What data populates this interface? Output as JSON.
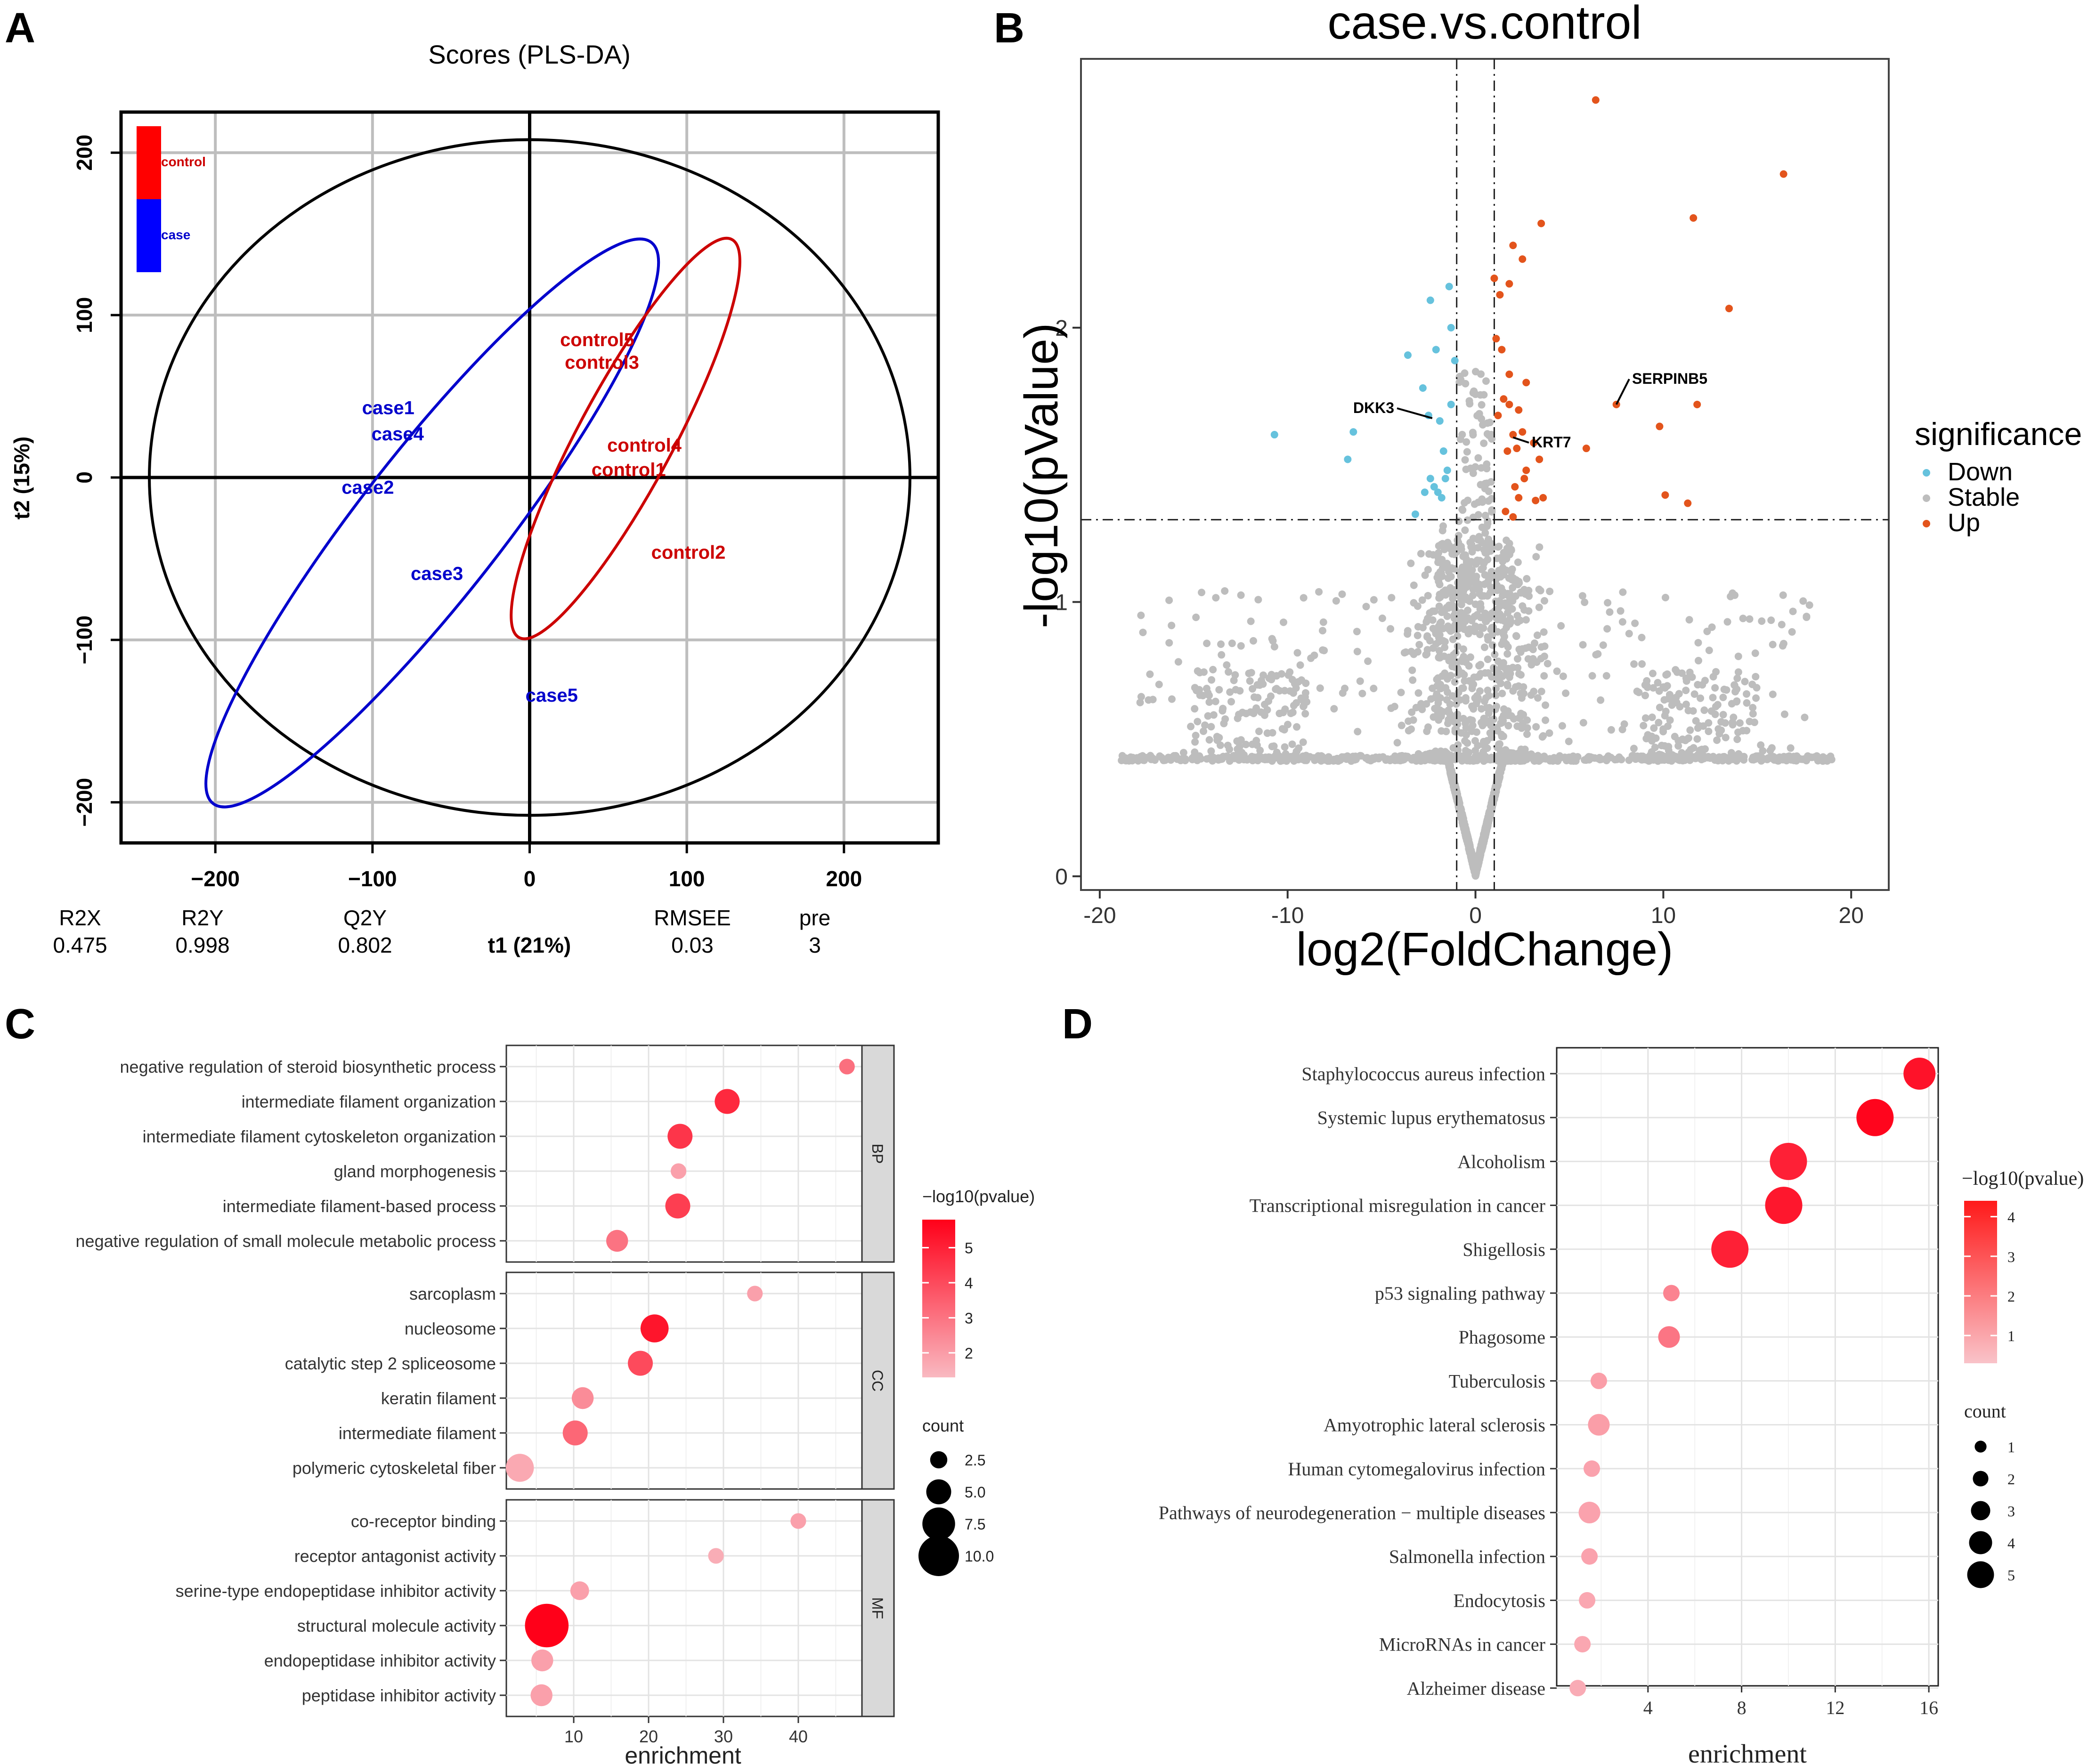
{
  "panel_labels": [
    "A",
    "B",
    "C",
    "D"
  ],
  "chart_data": [
    {
      "id": "A",
      "type": "scatter",
      "title": "Scores (PLS-DA)",
      "xlabel": "t1 (21%)",
      "ylabel": "t2 (15%)",
      "xlim": [
        -260,
        260
      ],
      "ylim": [
        -225,
        225
      ],
      "xticks": [
        "−200",
        "−100",
        "0",
        "100",
        "200"
      ],
      "xtick_values": [
        -200,
        -100,
        0,
        100,
        200
      ],
      "yticks": [
        "−200",
        "−100",
        "0",
        "100",
        "200"
      ],
      "ytick_values": [
        -200,
        -100,
        0,
        100,
        200
      ],
      "grid": true,
      "legend": [
        {
          "label": "control",
          "color": "#ff0000"
        },
        {
          "label": "case",
          "color": "#0000ff"
        }
      ],
      "series": [
        {
          "name": "control",
          "color": "#cc0000",
          "points": [
            {
              "label": "control5",
              "x": 43,
              "y": 84
            },
            {
              "label": "control3",
              "x": 46,
              "y": 70
            },
            {
              "label": "control4",
              "x": 73,
              "y": 19
            },
            {
              "label": "control1",
              "x": 63,
              "y": 4
            },
            {
              "label": "control2",
              "x": 101,
              "y": -47
            }
          ]
        },
        {
          "name": "case",
          "color": "#0000cc",
          "points": [
            {
              "label": "case1",
              "x": -90,
              "y": 42
            },
            {
              "label": "case4",
              "x": -84,
              "y": 26
            },
            {
              "label": "case2",
              "x": -103,
              "y": -7
            },
            {
              "label": "case3",
              "x": -59,
              "y": -60
            },
            {
              "label": "case5",
              "x": 14,
              "y": -135
            }
          ]
        }
      ],
      "ellipses": [
        {
          "name": "overall",
          "color": "#000000",
          "cx": 0,
          "cy": 0,
          "rx": 242,
          "ry": 208,
          "angle": 0
        },
        {
          "name": "case",
          "color": "#0000cc",
          "cx": -62,
          "cy": -28,
          "rx": 222,
          "ry": 45,
          "angle": -51
        },
        {
          "name": "control",
          "color": "#cc0000",
          "cx": 61,
          "cy": 24,
          "rx": 140,
          "ry": 30,
          "angle": -61
        }
      ],
      "metrics": {
        "headers": [
          "R2X",
          "R2Y",
          "Q2Y",
          "RMSEE",
          "pre"
        ],
        "values": [
          "0.475",
          "0.998",
          "0.802",
          "0.03",
          "3"
        ]
      }
    },
    {
      "id": "B",
      "type": "scatter",
      "title": "case.vs.control",
      "xlabel": "log2(FoldChange)",
      "ylabel": "-log10(pValue)",
      "xlim": [
        -21,
        22
      ],
      "ylim": [
        -0.05,
        2.98
      ],
      "xticks": [
        "-20",
        "-10",
        "0",
        "10",
        "20"
      ],
      "xtick_values": [
        -20,
        -10,
        0,
        10,
        20
      ],
      "yticks": [
        "0",
        "1",
        "2"
      ],
      "ytick_values": [
        0,
        1,
        2
      ],
      "vlines": [
        -1,
        1
      ],
      "hline": 1.3,
      "legend_title": "significance",
      "legend": [
        {
          "label": "Down",
          "color": "#66c2dd"
        },
        {
          "label": "Stable",
          "color": "#bdbdbd"
        },
        {
          "label": "Up",
          "color": "#e3541c"
        }
      ],
      "stable_points": 3200,
      "down_points": [
        [
          -3.6,
          1.9
        ],
        [
          -2.4,
          2.1
        ],
        [
          -2.1,
          1.92
        ],
        [
          -1.4,
          2.15
        ],
        [
          -1.3,
          2.0
        ],
        [
          -1.1,
          1.88
        ],
        [
          -2.8,
          1.78
        ],
        [
          -2.5,
          1.68
        ],
        [
          -1.9,
          1.66
        ],
        [
          -1.7,
          1.55
        ],
        [
          -1.5,
          1.48
        ],
        [
          -2.2,
          1.42
        ],
        [
          -1.8,
          1.38
        ],
        [
          -2.4,
          1.45
        ],
        [
          -3.2,
          1.32
        ],
        [
          -6.5,
          1.62
        ],
        [
          -6.8,
          1.52
        ],
        [
          -10.7,
          1.61
        ],
        [
          -1.3,
          1.72
        ],
        [
          -2.7,
          1.4
        ],
        [
          -1.6,
          1.45
        ],
        [
          -2.0,
          1.4
        ]
      ],
      "up_points": [
        [
          6.4,
          2.83
        ],
        [
          16.4,
          2.56
        ],
        [
          11.6,
          2.4
        ],
        [
          3.5,
          2.38
        ],
        [
          2.0,
          2.3
        ],
        [
          2.5,
          2.25
        ],
        [
          1.0,
          2.18
        ],
        [
          1.8,
          2.16
        ],
        [
          1.3,
          2.12
        ],
        [
          13.5,
          2.07
        ],
        [
          1.1,
          1.96
        ],
        [
          1.4,
          1.92
        ],
        [
          1.8,
          1.83
        ],
        [
          2.7,
          1.8
        ],
        [
          1.5,
          1.74
        ],
        [
          1.8,
          1.72
        ],
        [
          2.3,
          1.7
        ],
        [
          1.2,
          1.68
        ],
        [
          2.5,
          1.62
        ],
        [
          3.1,
          1.58
        ],
        [
          1.7,
          1.55
        ],
        [
          2.2,
          1.56
        ],
        [
          3.4,
          1.52
        ],
        [
          2.7,
          1.48
        ],
        [
          2.1,
          1.42
        ],
        [
          3.2,
          1.37
        ],
        [
          2.3,
          1.38
        ],
        [
          1.6,
          1.33
        ],
        [
          2.0,
          1.31
        ],
        [
          5.9,
          1.56
        ],
        [
          7.5,
          1.72
        ],
        [
          9.8,
          1.64
        ],
        [
          11.8,
          1.72
        ],
        [
          10.1,
          1.39
        ],
        [
          11.3,
          1.36
        ],
        [
          3.6,
          1.38
        ],
        [
          2.6,
          1.45
        ],
        [
          2.0,
          1.61
        ]
      ],
      "annotations": [
        {
          "label": "SERPINB5",
          "x": 7.5,
          "y": 1.72
        },
        {
          "label": "DKK3",
          "x": -2.3,
          "y": 1.67
        },
        {
          "label": "KRT7",
          "x": 2.0,
          "y": 1.6
        }
      ]
    },
    {
      "id": "C",
      "type": "scatter",
      "subtype": "dot-enrichment",
      "xlabel": "enrichment",
      "xlim": [
        1,
        48.5
      ],
      "xticks": [
        "10",
        "20",
        "30",
        "40"
      ],
      "xtick_values": [
        10,
        20,
        30,
        40
      ],
      "color_legend_title": "−log10(pvalue)",
      "color_ticks": [
        "2",
        "3",
        "4",
        "5"
      ],
      "color_tick_values": [
        2,
        3,
        4,
        5
      ],
      "color_range": [
        1.3,
        5.8
      ],
      "size_legend_title": "count",
      "size_legend": [
        "2.5",
        "5.0",
        "7.5",
        "10.0"
      ],
      "size_legend_values": [
        2.5,
        5.0,
        7.5,
        10.0
      ],
      "facets": [
        {
          "label": "BP",
          "terms": [
            {
              "term": "negative regulation of steroid biosynthetic process",
              "enrichment": 46.5,
              "count": 2,
              "pvalue": 3.1
            },
            {
              "term": "intermediate filament organization",
              "enrichment": 30.5,
              "count": 5,
              "pvalue": 4.8
            },
            {
              "term": "intermediate filament cytoskeleton organization",
              "enrichment": 24.2,
              "count": 5,
              "pvalue": 4.5
            },
            {
              "term": "gland morphogenesis",
              "enrichment": 24.0,
              "count": 2,
              "pvalue": 1.9
            },
            {
              "term": "intermediate filament-based process",
              "enrichment": 23.9,
              "count": 5,
              "pvalue": 4.3
            },
            {
              "term": "negative regulation of small molecule metabolic process",
              "enrichment": 15.8,
              "count": 4,
              "pvalue": 3.0
            }
          ]
        },
        {
          "label": "CC",
          "terms": [
            {
              "term": "sarcoplasm",
              "enrichment": 34.2,
              "count": 2,
              "pvalue": 1.9
            },
            {
              "term": "nucleosome",
              "enrichment": 20.8,
              "count": 6,
              "pvalue": 5.3
            },
            {
              "term": "catalytic step 2 spliceosome",
              "enrichment": 18.9,
              "count": 5,
              "pvalue": 4.0
            },
            {
              "term": "keratin filament",
              "enrichment": 11.2,
              "count": 4,
              "pvalue": 2.4
            },
            {
              "term": "intermediate filament",
              "enrichment": 10.2,
              "count": 5,
              "pvalue": 3.3
            },
            {
              "term": "polymeric cytoskeletal fiber",
              "enrichment": 2.8,
              "count": 6,
              "pvalue": 1.7
            }
          ]
        },
        {
          "label": "MF",
          "terms": [
            {
              "term": "co-receptor binding",
              "enrichment": 40.0,
              "count": 2,
              "pvalue": 1.9
            },
            {
              "term": "receptor antagonist activity",
              "enrichment": 29.0,
              "count": 2,
              "pvalue": 1.6
            },
            {
              "term": "serine-type endopeptidase inhibitor activity",
              "enrichment": 10.8,
              "count": 3,
              "pvalue": 1.9
            },
            {
              "term": "structural molecule activity",
              "enrichment": 6.4,
              "count": 11,
              "pvalue": 5.8
            },
            {
              "term": "endopeptidase inhibitor activity",
              "enrichment": 5.8,
              "count": 4,
              "pvalue": 1.9
            },
            {
              "term": "peptidase inhibitor activity",
              "enrichment": 5.7,
              "count": 4,
              "pvalue": 1.9
            }
          ]
        }
      ]
    },
    {
      "id": "D",
      "type": "scatter",
      "subtype": "dot-enrichment",
      "xlabel": "enrichment",
      "xlim": [
        0.1,
        16.4
      ],
      "xticks": [
        "4",
        "8",
        "12",
        "16"
      ],
      "xtick_values": [
        4,
        8,
        12,
        16
      ],
      "color_legend_title": "−log10(pvalue)",
      "color_ticks": [
        "1",
        "2",
        "3",
        "4"
      ],
      "color_tick_values": [
        1,
        2,
        3,
        4
      ],
      "color_range": [
        0.3,
        4.4
      ],
      "size_legend_title": "count",
      "size_legend": [
        "1",
        "2",
        "3",
        "4",
        "5"
      ],
      "size_legend_values": [
        1,
        2,
        3,
        4,
        5
      ],
      "terms": [
        {
          "term": "Staphylococcus aureus infection",
          "enrichment": 15.6,
          "count": 4,
          "pvalue": 4.0
        },
        {
          "term": "Systemic lupus erythematosus",
          "enrichment": 13.7,
          "count": 5,
          "pvalue": 4.3
        },
        {
          "term": "Alcoholism",
          "enrichment": 10.0,
          "count": 5,
          "pvalue": 3.7
        },
        {
          "term": "Transcriptional misregulation in cancer",
          "enrichment": 9.8,
          "count": 5,
          "pvalue": 3.9
        },
        {
          "term": "Shigellosis",
          "enrichment": 7.5,
          "count": 5,
          "pvalue": 3.7
        },
        {
          "term": "p53 signaling pathway",
          "enrichment": 5.0,
          "count": 1,
          "pvalue": 1.5
        },
        {
          "term": "Phagosome",
          "enrichment": 4.9,
          "count": 2,
          "pvalue": 1.8
        },
        {
          "term": "Tuberculosis",
          "enrichment": 1.9,
          "count": 1,
          "pvalue": 0.9
        },
        {
          "term": "Amyotrophic lateral sclerosis",
          "enrichment": 1.9,
          "count": 2,
          "pvalue": 0.9
        },
        {
          "term": "Human cytomegalovirus infection",
          "enrichment": 1.6,
          "count": 1,
          "pvalue": 0.8
        },
        {
          "term": "Pathways of neurodegeneration − multiple diseases",
          "enrichment": 1.5,
          "count": 2,
          "pvalue": 0.8
        },
        {
          "term": "Salmonella infection",
          "enrichment": 1.5,
          "count": 1,
          "pvalue": 0.8
        },
        {
          "term": "Endocytosis",
          "enrichment": 1.4,
          "count": 1,
          "pvalue": 0.7
        },
        {
          "term": "MicroRNAs in cancer",
          "enrichment": 1.2,
          "count": 1,
          "pvalue": 0.7
        },
        {
          "term": "Alzheimer disease",
          "enrichment": 1.0,
          "count": 1,
          "pvalue": 0.6
        }
      ]
    }
  ]
}
